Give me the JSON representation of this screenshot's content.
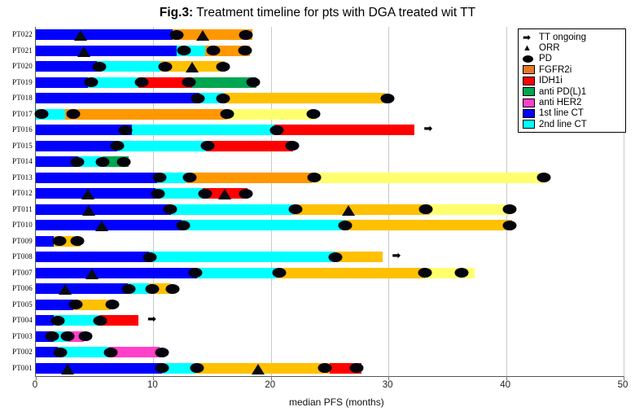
{
  "title": {
    "prefix": "Fig.3:",
    "rest": " Treatment timeline for pts with DGA treated wit TT"
  },
  "chart_data": {
    "type": "bar",
    "subtype": "horizontal-stacked-timeline",
    "title": "Fig.3: Treatment timeline for pts with DGA treated wit TT",
    "xlabel": "median PFS (months)",
    "xlim": [
      0,
      50
    ],
    "xticks": [
      0,
      10,
      20,
      30,
      40,
      50
    ],
    "grid": "vertical-light-gray",
    "legend_position": "top-right",
    "palette": {
      "blue": "#0000FF",
      "cyan": "#00FFFF",
      "orange": "#FF9800",
      "gold": "#FFC000",
      "yellow": "#FFFF6E",
      "red": "#FF0000",
      "green": "#00A651",
      "magenta": "#FF40C8"
    },
    "legend": [
      {
        "symbol": "arrow",
        "label": "TT ongoing"
      },
      {
        "symbol": "triangle",
        "label": "ORR"
      },
      {
        "symbol": "ellipse",
        "label": "PD"
      },
      {
        "symbol": "swatch",
        "color": "#E87728",
        "label": "FGFR2i"
      },
      {
        "symbol": "swatch",
        "color": "#FF0000",
        "label": "IDH1i"
      },
      {
        "symbol": "swatch",
        "color": "#00A651",
        "label": "anti PD(L)1"
      },
      {
        "symbol": "swatch",
        "color": "#FF40C8",
        "label": "anti HER2"
      },
      {
        "symbol": "swatch",
        "color": "#0000FF",
        "label": "1st line CT"
      },
      {
        "symbol": "swatch",
        "color": "#00FFFF",
        "label": "2nd line CT"
      }
    ],
    "rows": [
      {
        "id": "PT022",
        "segments": [
          {
            "color": "blue",
            "start": 0,
            "end": 11.6
          },
          {
            "color": "orange",
            "start": 11.6,
            "end": 18.4
          }
        ],
        "orr": [
          3.8,
          14.2
        ],
        "pd": [
          12.0,
          17.9
        ],
        "ongoing": null
      },
      {
        "id": "PT021",
        "segments": [
          {
            "color": "blue",
            "start": 0,
            "end": 12.0
          },
          {
            "color": "cyan",
            "start": 12.0,
            "end": 14.4
          },
          {
            "color": "orange",
            "start": 14.4,
            "end": 18.2
          }
        ],
        "orr": [
          4.1
        ],
        "pd": [
          12.6,
          15.1,
          17.8
        ],
        "ongoing": null
      },
      {
        "id": "PT020",
        "segments": [
          {
            "color": "blue",
            "start": 0,
            "end": 5.2
          },
          {
            "color": "cyan",
            "start": 5.2,
            "end": 10.6
          },
          {
            "color": "gold",
            "start": 10.6,
            "end": 16.1
          }
        ],
        "orr": [
          13.3
        ],
        "pd": [
          5.4,
          11.0,
          15.9
        ],
        "ongoing": null
      },
      {
        "id": "PT019",
        "segments": [
          {
            "color": "blue",
            "start": 0,
            "end": 4.4
          },
          {
            "color": "cyan",
            "start": 4.4,
            "end": 8.7
          },
          {
            "color": "red",
            "start": 8.7,
            "end": 13.3
          },
          {
            "color": "green",
            "start": 13.3,
            "end": 18.8
          }
        ],
        "orr": [],
        "pd": [
          4.7,
          9.0,
          13.0,
          18.5
        ],
        "ongoing": null
      },
      {
        "id": "PT018",
        "segments": [
          {
            "color": "blue",
            "start": 0,
            "end": 13.9
          },
          {
            "color": "cyan",
            "start": 13.9,
            "end": 16.0
          },
          {
            "color": "gold",
            "start": 16.0,
            "end": 29.7
          }
        ],
        "orr": [],
        "pd": [
          13.8,
          15.9,
          29.9
        ],
        "ongoing": null
      },
      {
        "id": "PT017",
        "segments": [
          {
            "color": "cyan",
            "start": 0,
            "end": 2.5
          },
          {
            "color": "orange",
            "start": 2.5,
            "end": 16.3
          },
          {
            "color": "yellow",
            "start": 16.3,
            "end": 23.8
          }
        ],
        "orr": [],
        "pd": [
          0.5,
          3.2,
          16.3,
          23.6
        ],
        "ongoing": null
      },
      {
        "id": "PT016",
        "segments": [
          {
            "color": "blue",
            "start": 0,
            "end": 8.2
          },
          {
            "color": "cyan",
            "start": 8.2,
            "end": 20.3
          },
          {
            "color": "red",
            "start": 20.3,
            "end": 32.2
          }
        ],
        "orr": [],
        "pd": [
          7.6,
          20.5
        ],
        "ongoing": 33.0
      },
      {
        "id": "PT015",
        "segments": [
          {
            "color": "blue",
            "start": 0,
            "end": 6.9
          },
          {
            "color": "cyan",
            "start": 6.9,
            "end": 14.5
          },
          {
            "color": "red",
            "start": 14.5,
            "end": 21.9
          }
        ],
        "orr": [],
        "pd": [
          6.9,
          14.6,
          21.8
        ],
        "ongoing": null
      },
      {
        "id": "PT014",
        "segments": [
          {
            "color": "blue",
            "start": 0,
            "end": 3.6
          },
          {
            "color": "cyan",
            "start": 3.6,
            "end": 5.7
          },
          {
            "color": "green",
            "start": 5.7,
            "end": 7.9
          }
        ],
        "orr": [],
        "pd": [
          3.5,
          5.7,
          7.5
        ],
        "ongoing": null
      },
      {
        "id": "PT013",
        "segments": [
          {
            "color": "blue",
            "start": 0,
            "end": 10.3
          },
          {
            "color": "cyan",
            "start": 10.3,
            "end": 12.8
          },
          {
            "color": "orange",
            "start": 12.8,
            "end": 23.5
          },
          {
            "color": "yellow",
            "start": 23.5,
            "end": 43.4
          }
        ],
        "orr": [],
        "pd": [
          10.5,
          13.1,
          23.7,
          43.2
        ],
        "ongoing": null
      },
      {
        "id": "PT012",
        "segments": [
          {
            "color": "blue",
            "start": 0,
            "end": 10.2
          },
          {
            "color": "cyan",
            "start": 10.2,
            "end": 14.2
          },
          {
            "color": "red",
            "start": 14.2,
            "end": 18.0
          }
        ],
        "orr": [
          4.4,
          16.1
        ],
        "pd": [
          10.4,
          14.4,
          17.9
        ],
        "ongoing": null
      },
      {
        "id": "PT011",
        "segments": [
          {
            "color": "blue",
            "start": 0,
            "end": 11.5
          },
          {
            "color": "cyan",
            "start": 11.5,
            "end": 21.9
          },
          {
            "color": "gold",
            "start": 21.9,
            "end": 33.5
          },
          {
            "color": "yellow",
            "start": 33.5,
            "end": 40.3
          }
        ],
        "orr": [
          4.5,
          26.6
        ],
        "pd": [
          11.4,
          22.1,
          33.2,
          40.3
        ],
        "ongoing": null
      },
      {
        "id": "PT010",
        "segments": [
          {
            "color": "blue",
            "start": 0,
            "end": 12.4
          },
          {
            "color": "cyan",
            "start": 12.4,
            "end": 26.3
          },
          {
            "color": "gold",
            "start": 26.3,
            "end": 40.5
          }
        ],
        "orr": [
          5.6
        ],
        "pd": [
          12.5,
          26.3,
          40.3
        ],
        "ongoing": null
      },
      {
        "id": "PT009",
        "segments": [
          {
            "color": "blue",
            "start": 0,
            "end": 1.5
          },
          {
            "color": "gold",
            "start": 1.5,
            "end": 3.8
          }
        ],
        "orr": [],
        "pd": [
          2.0,
          3.5
        ],
        "ongoing": null
      },
      {
        "id": "PT008",
        "segments": [
          {
            "color": "blue",
            "start": 0,
            "end": 9.6
          },
          {
            "color": "cyan",
            "start": 9.6,
            "end": 25.5
          },
          {
            "color": "gold",
            "start": 25.5,
            "end": 29.5
          }
        ],
        "orr": [],
        "pd": [
          9.7,
          25.5
        ],
        "ongoing": 30.3
      },
      {
        "id": "PT007",
        "segments": [
          {
            "color": "blue",
            "start": 0,
            "end": 13.7
          },
          {
            "color": "cyan",
            "start": 13.7,
            "end": 20.5
          },
          {
            "color": "gold",
            "start": 20.5,
            "end": 33.1
          },
          {
            "color": "yellow",
            "start": 33.1,
            "end": 37.3
          }
        ],
        "orr": [
          4.8
        ],
        "pd": [
          13.6,
          20.7,
          33.1,
          36.2
        ],
        "ongoing": null
      },
      {
        "id": "PT006",
        "segments": [
          {
            "color": "blue",
            "start": 0,
            "end": 7.8
          },
          {
            "color": "cyan",
            "start": 7.8,
            "end": 9.6
          },
          {
            "color": "gold",
            "start": 9.6,
            "end": 11.5
          }
        ],
        "orr": [
          2.5
        ],
        "pd": [
          7.9,
          9.9,
          11.6
        ],
        "ongoing": null
      },
      {
        "id": "PT005",
        "segments": [
          {
            "color": "blue",
            "start": 0,
            "end": 3.2
          },
          {
            "color": "gold",
            "start": 3.2,
            "end": 6.4
          }
        ],
        "orr": [],
        "pd": [
          3.4,
          6.5
        ],
        "ongoing": null
      },
      {
        "id": "PT004",
        "segments": [
          {
            "color": "blue",
            "start": 0,
            "end": 1.5
          },
          {
            "color": "cyan",
            "start": 1.5,
            "end": 5.4
          },
          {
            "color": "red",
            "start": 5.4,
            "end": 8.7
          }
        ],
        "orr": [],
        "pd": [
          1.9,
          5.5
        ],
        "ongoing": 9.5
      },
      {
        "id": "PT003",
        "segments": [
          {
            "color": "blue",
            "start": 0,
            "end": 1.5
          },
          {
            "color": "cyan",
            "start": 1.5,
            "end": 2.8
          },
          {
            "color": "magenta",
            "start": 2.8,
            "end": 4.1
          }
        ],
        "orr": [],
        "pd": [
          1.4,
          2.7,
          4.2
        ],
        "ongoing": null
      },
      {
        "id": "PT002",
        "segments": [
          {
            "color": "blue",
            "start": 0,
            "end": 1.9
          },
          {
            "color": "cyan",
            "start": 1.9,
            "end": 6.2
          },
          {
            "color": "magenta",
            "start": 6.2,
            "end": 10.5
          }
        ],
        "orr": [],
        "pd": [
          2.1,
          6.4,
          10.7
        ],
        "ongoing": null
      },
      {
        "id": "PT001",
        "segments": [
          {
            "color": "blue",
            "start": 0,
            "end": 10.7
          },
          {
            "color": "cyan",
            "start": 10.7,
            "end": 13.5
          },
          {
            "color": "gold",
            "start": 13.5,
            "end": 25.0
          },
          {
            "color": "red",
            "start": 25.0,
            "end": 27.7
          }
        ],
        "orr": [
          2.7,
          18.9
        ],
        "pd": [
          10.7,
          13.7,
          24.6,
          27.3
        ],
        "ongoing": null
      }
    ]
  }
}
